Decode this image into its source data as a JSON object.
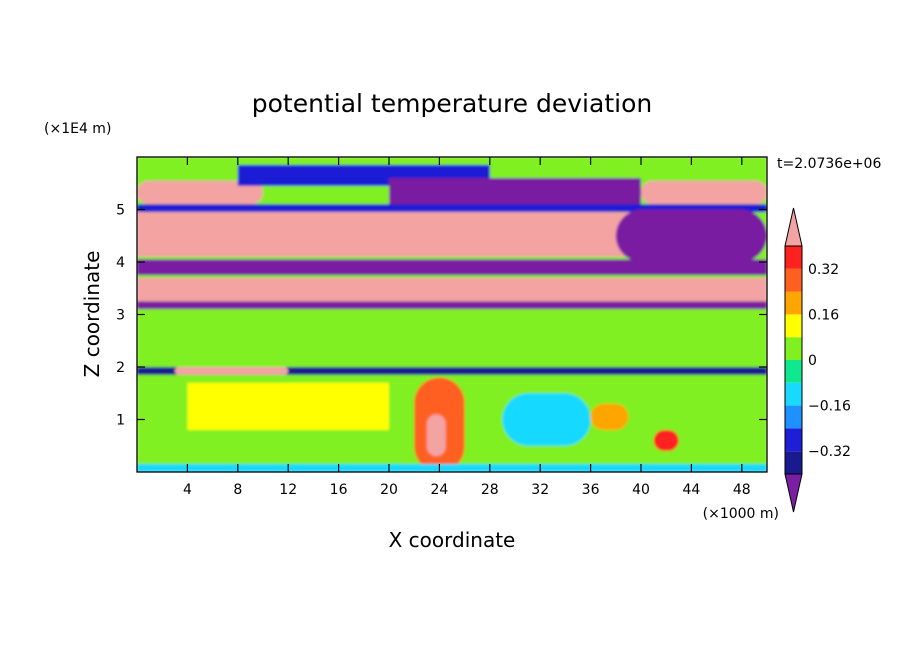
{
  "chart_data": {
    "type": "heatmap",
    "title": "potential temperature deviation",
    "xlabel": "X coordinate",
    "ylabel": "Z coordinate",
    "x_unit": "(×1000 m)",
    "y_unit": "(×1E4 m)",
    "time_label": "t=2.0736e+06",
    "xlim": [
      0,
      50
    ],
    "ylim": [
      0,
      6
    ],
    "x_ticks": [
      4,
      8,
      12,
      16,
      20,
      24,
      28,
      32,
      36,
      40,
      44,
      48
    ],
    "y_ticks": [
      1,
      2,
      3,
      4,
      5
    ],
    "colorbar": {
      "levels": [
        -0.4,
        -0.32,
        -0.24,
        -0.16,
        -0.08,
        0,
        0.08,
        0.16,
        0.24,
        0.32,
        0.4
      ],
      "labeled_ticks": [
        "0.32",
        "0.16",
        "0",
        "−0.16",
        "−0.32"
      ],
      "labeled_values": [
        0.32,
        0.16,
        0,
        -0.16,
        -0.32
      ],
      "colors": [
        "#7a1fa2",
        "#1a1a90",
        "#1e1ed6",
        "#1e90ff",
        "#19d9ff",
        "#10e890",
        "#80f020",
        "#ffff00",
        "#ffa500",
        "#ff6020",
        "#ff2020",
        "#f4a3a3"
      ],
      "extend": "both"
    },
    "regions": [
      {
        "x": [
          0,
          50
        ],
        "y": [
          0,
          6
        ],
        "value": 0.05
      },
      {
        "x": [
          0,
          50
        ],
        "y": [
          5.65,
          6.0
        ],
        "value": 0.05
      },
      {
        "x": [
          0,
          10
        ],
        "y": [
          5.1,
          5.55
        ],
        "value": 0.45
      },
      {
        "x": [
          8,
          28
        ],
        "y": [
          5.45,
          5.85
        ],
        "value": -0.3
      },
      {
        "x": [
          20,
          40
        ],
        "y": [
          5.05,
          5.6
        ],
        "value": -0.45
      },
      {
        "x": [
          40,
          50
        ],
        "y": [
          5.1,
          5.55
        ],
        "value": 0.45
      },
      {
        "x": [
          0,
          50
        ],
        "y": [
          4.95,
          5.1
        ],
        "value": -0.25
      },
      {
        "x": [
          0,
          42
        ],
        "y": [
          4.1,
          4.95
        ],
        "value": 0.45
      },
      {
        "x": [
          38,
          50
        ],
        "y": [
          4.0,
          5.0
        ],
        "value": -0.45
      },
      {
        "x": [
          0,
          50
        ],
        "y": [
          3.75,
          4.05
        ],
        "value": -0.45
      },
      {
        "x": [
          0,
          50
        ],
        "y": [
          3.25,
          3.7
        ],
        "value": 0.45
      },
      {
        "x": [
          0,
          50
        ],
        "y": [
          3.1,
          3.25
        ],
        "value": -0.45
      },
      {
        "x": [
          0,
          50
        ],
        "y": [
          2.0,
          3.1
        ],
        "value": 0.05
      },
      {
        "x": [
          0,
          50
        ],
        "y": [
          1.85,
          2.0
        ],
        "value": -0.35
      },
      {
        "x": [
          3,
          12
        ],
        "y": [
          1.85,
          2.0
        ],
        "value": 0.45
      },
      {
        "x": [
          0,
          50
        ],
        "y": [
          0,
          1.85
        ],
        "value": 0.02
      },
      {
        "x": [
          4,
          20
        ],
        "y": [
          0.8,
          1.7
        ],
        "value": 0.09
      },
      {
        "x": [
          22,
          26
        ],
        "y": [
          0,
          1.8
        ],
        "value": 0.26
      },
      {
        "x": [
          23,
          24.5
        ],
        "y": [
          0.3,
          1.1
        ],
        "value": 0.4
      },
      {
        "x": [
          29,
          36
        ],
        "y": [
          0.5,
          1.5
        ],
        "value": -0.1
      },
      {
        "x": [
          36,
          39
        ],
        "y": [
          0.8,
          1.3
        ],
        "value": 0.2
      },
      {
        "x": [
          41,
          43
        ],
        "y": [
          0.4,
          0.8
        ],
        "value": 0.35
      },
      {
        "x": [
          0,
          50
        ],
        "y": [
          0,
          0.15
        ],
        "value": -0.1
      }
    ]
  }
}
